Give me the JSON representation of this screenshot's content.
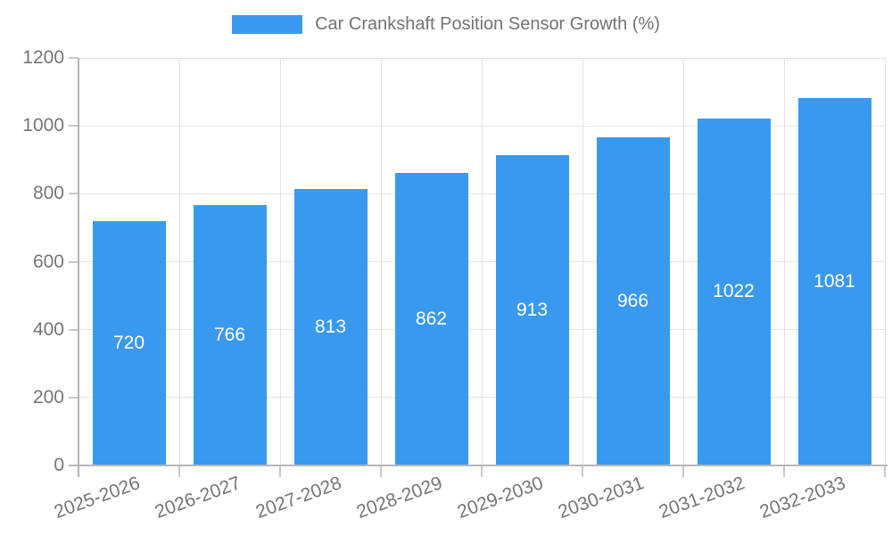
{
  "chart_data": {
    "type": "bar",
    "title": "Car Crankshaft Position Sensor Growth (%)",
    "categories": [
      "2025-2026",
      "2026-2027",
      "2027-2028",
      "2028-2029",
      "2029-2030",
      "2030-2031",
      "2031-2032",
      "2032-2033"
    ],
    "values": [
      720,
      766,
      813,
      862,
      913,
      966,
      1022,
      1081
    ],
    "xlabel": "",
    "ylabel": "",
    "ylim": [
      0,
      1200
    ],
    "yticks": [
      0,
      200,
      400,
      600,
      800,
      1000,
      1200
    ],
    "grid": true,
    "legend_position": "top",
    "bar_color": "#3999ee",
    "bar_value_label_color": "#ffffff",
    "axis_text_color": "#757575",
    "grid_color": "#e3e3e3",
    "axis_line_color": "#b6b6b6",
    "tick_color": "#c9c9c9"
  }
}
